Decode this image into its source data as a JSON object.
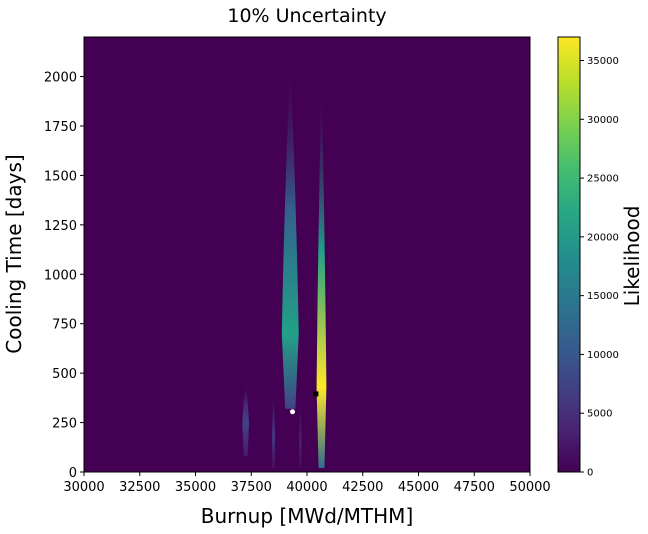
{
  "chart_data": {
    "type": "heatmap",
    "title": "10% Uncertainty",
    "xlabel": "Burnup [MWd/MTHM]",
    "ylabel": "Cooling Time [days]",
    "xlim": [
      30000,
      50000
    ],
    "ylim": [
      0,
      2200
    ],
    "x_ticks": [
      30000,
      32500,
      35000,
      37500,
      40000,
      42500,
      45000,
      47500,
      50000
    ],
    "y_ticks": [
      0,
      250,
      500,
      750,
      1000,
      1250,
      1500,
      1750,
      2000
    ],
    "grid": false,
    "colorbar": {
      "label": "Likelihood",
      "range": [
        0,
        37000
      ],
      "ticks": [
        0,
        5000,
        10000,
        15000,
        20000,
        25000,
        30000,
        35000
      ],
      "colormap": "viridis"
    },
    "likelihood_regions": [
      {
        "x_center": 40650,
        "x_halfwidth": 220,
        "y_min": 20,
        "y_max": 1980,
        "peak_y": 430,
        "peak_likelihood": 37000
      },
      {
        "x_center": 39250,
        "x_halfwidth": 380,
        "y_min": 320,
        "y_max": 2080,
        "peak_y": 700,
        "peak_likelihood": 21000
      },
      {
        "x_center": 37250,
        "x_halfwidth": 150,
        "y_min": 80,
        "y_max": 460,
        "peak_y": 250,
        "peak_likelihood": 7500
      },
      {
        "x_center": 38500,
        "x_halfwidth": 70,
        "y_min": 20,
        "y_max": 420,
        "peak_y": 180,
        "peak_likelihood": 6000
      },
      {
        "x_center": 39700,
        "x_halfwidth": 60,
        "y_min": 20,
        "y_max": 380,
        "peak_y": 150,
        "peak_likelihood": 3500
      }
    ],
    "markers": [
      {
        "name": "white-point",
        "x": 39350,
        "y": 305,
        "color": "#ffffff",
        "shape": "circle"
      },
      {
        "name": "black-point",
        "x": 40400,
        "y": 395,
        "color": "#000000",
        "shape": "square"
      }
    ]
  }
}
